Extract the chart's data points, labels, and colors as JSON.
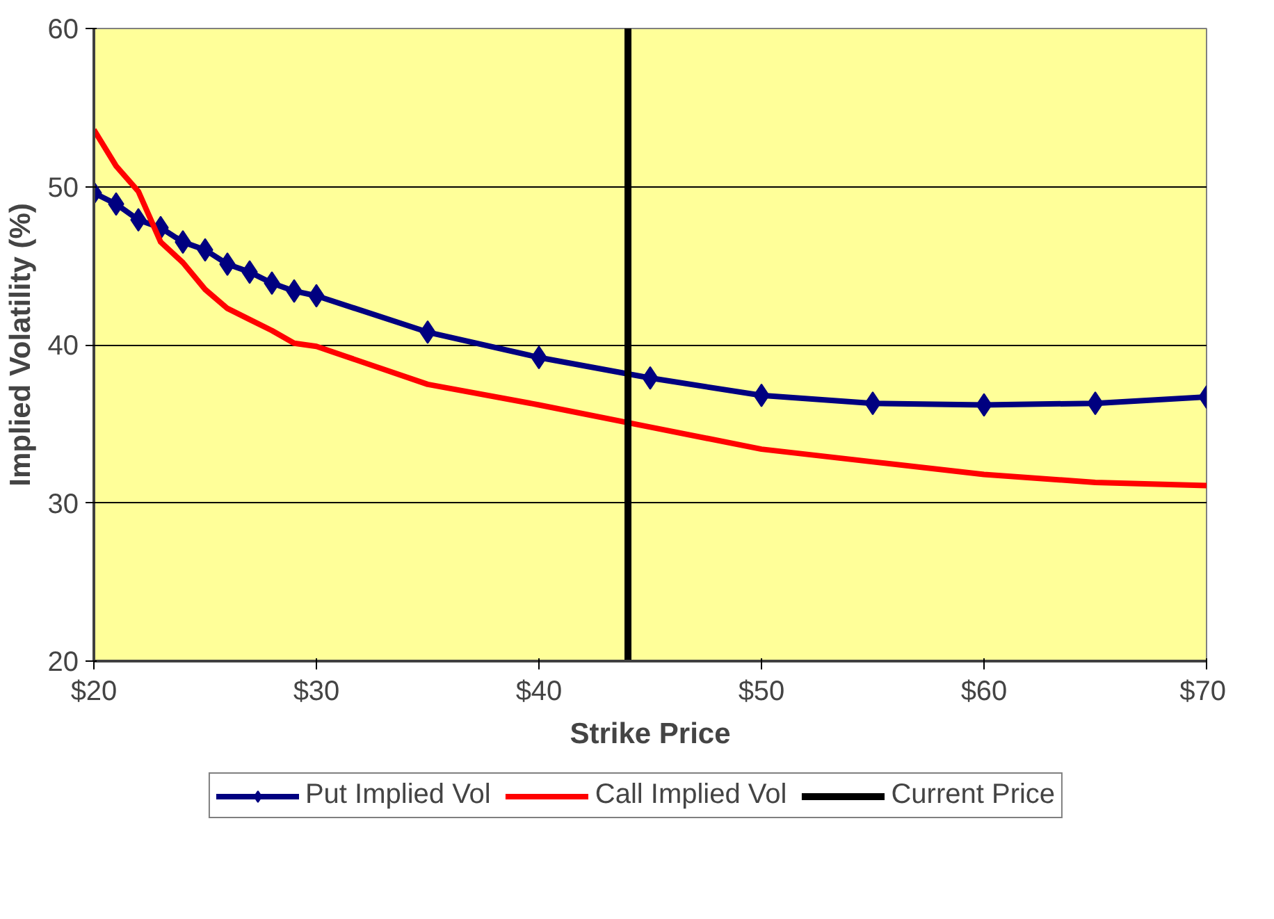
{
  "chart_data": {
    "type": "line",
    "xlabel": "Strike Price",
    "ylabel": "Implied Volatility (%)",
    "xlim": [
      20,
      70
    ],
    "ylim": [
      20,
      60
    ],
    "xticks": [
      {
        "value": 20,
        "label": "$20"
      },
      {
        "value": 30,
        "label": "$30"
      },
      {
        "value": 40,
        "label": "$40"
      },
      {
        "value": 50,
        "label": "$50"
      },
      {
        "value": 60,
        "label": "$60"
      },
      {
        "value": 70,
        "label": "$70"
      }
    ],
    "yticks": [
      20,
      30,
      40,
      50,
      60
    ],
    "grid": "y",
    "legend": "bottom",
    "x": [
      20,
      21,
      22,
      23,
      24,
      25,
      26,
      27,
      28,
      29,
      30,
      35,
      40,
      45,
      50,
      55,
      60,
      65,
      70
    ],
    "series": [
      {
        "name": "Put Implied Vol",
        "color": "#000080",
        "marker": "diamond",
        "values": [
          49.6,
          48.9,
          47.9,
          47.4,
          46.5,
          46.0,
          45.1,
          44.6,
          43.9,
          43.4,
          43.1,
          40.8,
          39.2,
          37.9,
          36.8,
          36.3,
          36.2,
          36.3,
          36.7
        ]
      },
      {
        "name": "Call Implied Vol",
        "color": "#ff0000",
        "marker": "none",
        "values": [
          53.6,
          51.3,
          49.7,
          46.5,
          45.2,
          43.5,
          42.3,
          41.6,
          40.9,
          40.1,
          39.9,
          37.5,
          36.2,
          34.8,
          33.4,
          32.6,
          31.8,
          31.3,
          31.1
        ]
      }
    ],
    "ref_lines": [
      {
        "axis": "x",
        "value": 44,
        "label": "Current Price",
        "color": "#000000",
        "line_style": "solid"
      }
    ]
  }
}
